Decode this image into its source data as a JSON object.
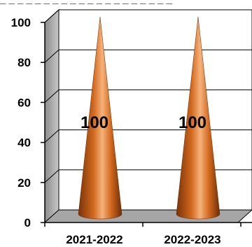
{
  "chart_data": {
    "type": "bar",
    "bar_shape": "cone",
    "categories": [
      "2021-2022",
      "2022-2023"
    ],
    "values": [
      100,
      100
    ],
    "data_labels": [
      "100",
      "100"
    ],
    "ylim": [
      0,
      100
    ],
    "y_ticks": [
      "0",
      "20",
      "40",
      "60",
      "80",
      "100"
    ],
    "title": "",
    "xlabel": "",
    "ylabel": "",
    "grid": true,
    "legend": "none",
    "colors": {
      "bar": "#d2691e",
      "bar_light": "#f6b27a",
      "bar_dark": "#8a3a0c",
      "wall": "#ffffff",
      "floor": "#a6a6a6",
      "side_wall": "#b3b3b3",
      "grid": "#000000"
    }
  }
}
